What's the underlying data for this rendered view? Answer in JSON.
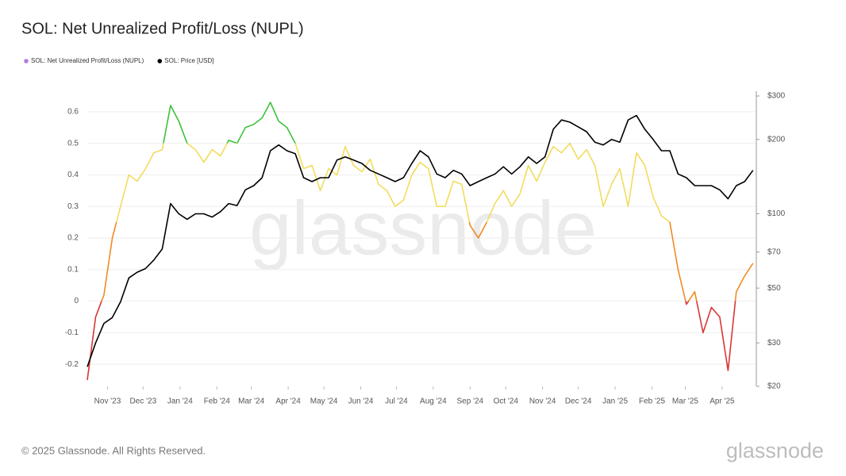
{
  "chart_data": {
    "type": "line",
    "title": "SOL: Net Unrealized Profit/Loss (NUPL)",
    "watermark": "glassnode",
    "footer": "© 2025 Glassnode. All Rights Reserved.",
    "logo": "glassnode",
    "xlim": [
      0,
      80.4
    ],
    "xticks": [
      {
        "value": 2.43,
        "label": "Nov '23"
      },
      {
        "value": 6.71,
        "label": "Dec '23"
      },
      {
        "value": 11.14,
        "label": "Jan '24"
      },
      {
        "value": 15.57,
        "label": "Feb '24"
      },
      {
        "value": 19.71,
        "label": "Mar '24"
      },
      {
        "value": 24.14,
        "label": "Apr '24"
      },
      {
        "value": 28.43,
        "label": "May '24"
      },
      {
        "value": 32.86,
        "label": "Jun '24"
      },
      {
        "value": 37.14,
        "label": "Jul '24"
      },
      {
        "value": 41.57,
        "label": "Aug '24"
      },
      {
        "value": 46,
        "label": "Sep '24"
      },
      {
        "value": 50.29,
        "label": "Oct '24"
      },
      {
        "value": 54.71,
        "label": "Nov '24"
      },
      {
        "value": 59,
        "label": "Dec '24"
      },
      {
        "value": 63.43,
        "label": "Jan '25"
      },
      {
        "value": 67.86,
        "label": "Feb '25"
      },
      {
        "value": 71.86,
        "label": "Mar '25"
      },
      {
        "value": 76.29,
        "label": "Apr '25"
      }
    ],
    "ylim": [
      -0.27,
      0.65
    ],
    "yticks": [
      -0.2,
      -0.1,
      0,
      0.1,
      0.2,
      0.3,
      0.4,
      0.5,
      0.6
    ],
    "y2lim": [
      20,
      300
    ],
    "y2log": true,
    "y2ticks": [
      {
        "value": 20,
        "label": "$20"
      },
      {
        "value": 30,
        "label": "$30"
      },
      {
        "value": 50,
        "label": "$50"
      },
      {
        "value": 70,
        "label": "$70"
      },
      {
        "value": 100,
        "label": "$100"
      },
      {
        "value": 200,
        "label": "$200"
      },
      {
        "value": 300,
        "label": "$300"
      }
    ],
    "grid": true,
    "series": [
      {
        "name": "SOL: Net Unrealized Profit/Loss (NUPL)",
        "color": "#b57be0",
        "zone_thresholds": [
          0,
          0.25,
          0.5
        ],
        "zone_colors": [
          "#d93535",
          "#f08a24",
          "#f2dc5d",
          "#3cc23c"
        ],
        "values": [
          -0.25,
          -0.05,
          0.02,
          0.2,
          0.3,
          0.4,
          0.38,
          0.42,
          0.47,
          0.48,
          0.62,
          0.57,
          0.5,
          0.48,
          0.44,
          0.48,
          0.46,
          0.51,
          0.5,
          0.55,
          0.56,
          0.58,
          0.63,
          0.57,
          0.55,
          0.5,
          0.42,
          0.43,
          0.35,
          0.42,
          0.4,
          0.49,
          0.43,
          0.41,
          0.45,
          0.37,
          0.35,
          0.3,
          0.32,
          0.4,
          0.44,
          0.42,
          0.3,
          0.3,
          0.38,
          0.37,
          0.24,
          0.2,
          0.25,
          0.31,
          0.35,
          0.3,
          0.34,
          0.43,
          0.38,
          0.44,
          0.49,
          0.47,
          0.5,
          0.45,
          0.48,
          0.43,
          0.3,
          0.37,
          0.42,
          0.3,
          0.47,
          0.43,
          0.33,
          0.27,
          0.25,
          0.1,
          -0.01,
          0.03,
          -0.1,
          -0.02,
          -0.05,
          -0.22,
          0.03,
          0.08,
          0.12
        ]
      },
      {
        "name": "SOL: Price [USD]",
        "color": "#000000",
        "axis": "y2",
        "values": [
          24,
          30,
          36,
          38,
          44,
          55,
          58,
          60,
          65,
          72,
          110,
          100,
          95,
          100,
          100,
          97,
          102,
          110,
          108,
          125,
          130,
          140,
          180,
          190,
          180,
          175,
          140,
          135,
          140,
          140,
          165,
          170,
          165,
          160,
          150,
          145,
          140,
          135,
          140,
          160,
          180,
          170,
          145,
          140,
          150,
          145,
          130,
          135,
          140,
          145,
          155,
          145,
          155,
          170,
          160,
          170,
          220,
          240,
          235,
          225,
          215,
          195,
          190,
          200,
          195,
          240,
          250,
          220,
          200,
          180,
          180,
          145,
          140,
          130,
          130,
          130,
          125,
          115,
          130,
          135,
          150
        ]
      }
    ]
  }
}
